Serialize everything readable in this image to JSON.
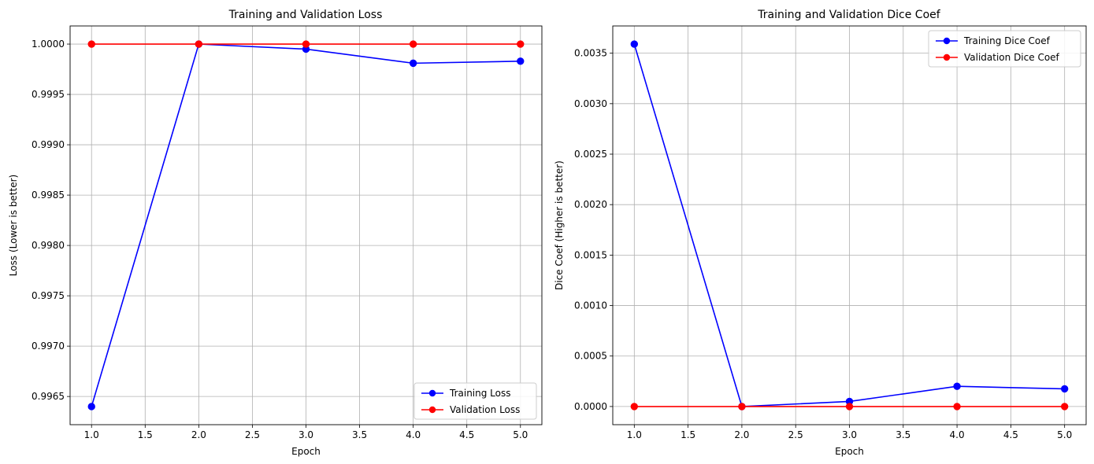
{
  "chart_data": [
    {
      "type": "line",
      "title": "Training and Validation Loss",
      "xlabel": "Epoch",
      "ylabel": "Loss (Lower is better)",
      "xlim": [
        0.8,
        5.2
      ],
      "ylim": [
        0.99622,
        1.00018
      ],
      "xticks": [
        "1.0",
        "1.5",
        "2.0",
        "2.5",
        "3.0",
        "3.5",
        "4.0",
        "4.5",
        "5.0"
      ],
      "xtick_values": [
        1.0,
        1.5,
        2.0,
        2.5,
        3.0,
        3.5,
        4.0,
        4.5,
        5.0
      ],
      "yticks": [
        "0.9965",
        "0.9970",
        "0.9975",
        "0.9980",
        "0.9985",
        "0.9990",
        "0.9995",
        "1.0000"
      ],
      "ytick_values": [
        0.9965,
        0.997,
        0.9975,
        0.998,
        0.9985,
        0.999,
        0.9995,
        1.0
      ],
      "grid": true,
      "legend_position": "lower-right",
      "x": [
        1,
        2,
        3,
        4,
        5
      ],
      "series": [
        {
          "name": "Training Loss",
          "color": "#0000ff",
          "marker": "circle",
          "values": [
            0.9964,
            1.0,
            0.99995,
            0.99981,
            0.99983
          ]
        },
        {
          "name": "Validation Loss",
          "color": "#ff0000",
          "marker": "circle",
          "values": [
            1.0,
            1.0,
            1.0,
            1.0,
            1.0
          ]
        }
      ]
    },
    {
      "type": "line",
      "title": "Training and Validation Dice Coef",
      "xlabel": "Epoch",
      "ylabel": "Dice Coef (Higher is better)",
      "xlim": [
        0.8,
        5.2
      ],
      "ylim": [
        -0.00018,
        0.00377
      ],
      "xticks": [
        "1.0",
        "1.5",
        "2.0",
        "2.5",
        "3.0",
        "3.5",
        "4.0",
        "4.5",
        "5.0"
      ],
      "xtick_values": [
        1.0,
        1.5,
        2.0,
        2.5,
        3.0,
        3.5,
        4.0,
        4.5,
        5.0
      ],
      "yticks": [
        "0.0000",
        "0.0005",
        "0.0010",
        "0.0015",
        "0.0020",
        "0.0025",
        "0.0030",
        "0.0035"
      ],
      "ytick_values": [
        0.0,
        0.0005,
        0.001,
        0.0015,
        0.002,
        0.0025,
        0.003,
        0.0035
      ],
      "grid": true,
      "legend_position": "upper-right",
      "x": [
        1,
        2,
        3,
        4,
        5
      ],
      "series": [
        {
          "name": "Training Dice Coef",
          "color": "#0000ff",
          "marker": "circle",
          "values": [
            0.00359,
            0.0,
            5e-05,
            0.0002,
            0.000175
          ]
        },
        {
          "name": "Validation Dice Coef",
          "color": "#ff0000",
          "marker": "circle",
          "values": [
            0.0,
            0.0,
            0.0,
            0.0,
            0.0
          ]
        }
      ]
    }
  ]
}
